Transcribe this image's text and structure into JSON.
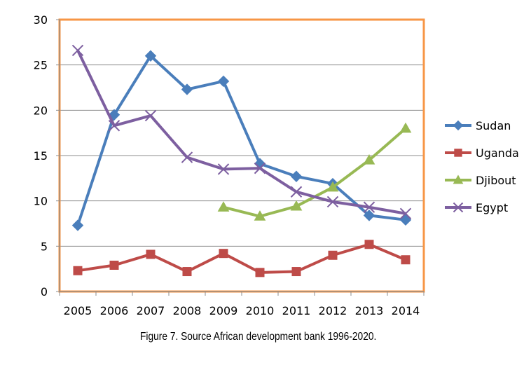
{
  "chart_data": {
    "type": "line",
    "categories": [
      "2005",
      "2006",
      "2007",
      "2008",
      "2009",
      "2010",
      "2011",
      "2012",
      "2013",
      "2014"
    ],
    "series": [
      {
        "name": "Sudan",
        "color": "#4a7ebb",
        "marker": "diamond",
        "values": [
          7.3,
          19.5,
          26.0,
          22.3,
          23.2,
          14.1,
          12.7,
          11.9,
          8.4,
          7.9
        ]
      },
      {
        "name": "Uganda",
        "color": "#be4b48",
        "marker": "square",
        "values": [
          2.3,
          2.9,
          4.1,
          2.2,
          4.2,
          2.1,
          2.2,
          4.0,
          5.2,
          3.5
        ]
      },
      {
        "name": "Djibout",
        "color": "#98b954",
        "marker": "triangle",
        "values": [
          null,
          null,
          null,
          null,
          9.3,
          8.3,
          9.4,
          11.5,
          14.5,
          18.0
        ]
      },
      {
        "name": "Egypt",
        "color": "#7d5fa0",
        "marker": "x",
        "values": [
          26.6,
          18.3,
          19.4,
          14.8,
          13.5,
          13.6,
          11.0,
          9.9,
          9.3,
          8.6
        ]
      }
    ],
    "y_ticks": [
      "0",
      "5",
      "10",
      "15",
      "20",
      "25",
      "30"
    ],
    "ylim": [
      0,
      30
    ],
    "grid": "horizontal",
    "legend": "right",
    "plot_border_color": "#f79646"
  },
  "caption": "Figure 7. Source African development bank 1996-2020."
}
